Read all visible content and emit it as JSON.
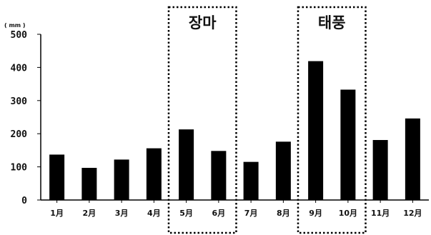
{
  "chart_data": {
    "type": "bar",
    "unit_label": "( mm )",
    "categories": [
      "1月",
      "2月",
      "3月",
      "4月",
      "5月",
      "6月",
      "7月",
      "8月",
      "9月",
      "10月",
      "11月",
      "12月"
    ],
    "values": [
      137,
      97,
      122,
      156,
      213,
      148,
      115,
      176,
      419,
      333,
      181,
      246
    ],
    "ylim": [
      0,
      500
    ],
    "yticks": [
      "0",
      "100",
      "200",
      "300",
      "400",
      "500"
    ],
    "grid": false,
    "bar_color": "#000000",
    "highlighted_regions": [
      {
        "label": "장마",
        "categories": [
          "5月",
          "6月"
        ]
      },
      {
        "label": "태풍",
        "categories": [
          "9月",
          "10月"
        ]
      }
    ]
  }
}
